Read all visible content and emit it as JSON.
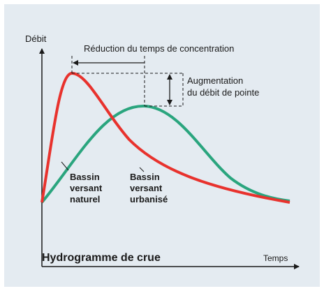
{
  "axes": {
    "y_label": "Débit",
    "x_label": "Temps"
  },
  "title": "Hydrogramme de crue",
  "annotations": {
    "reduction": "Réduction du temps de concentration",
    "augmentation": [
      "Augmentation",
      "du débit de pointe"
    ]
  },
  "curves": [
    {
      "name": [
        "Bassin",
        "versant",
        "naturel"
      ],
      "color": "#2aa57e"
    },
    {
      "name": [
        "Bassin",
        "versant",
        "urbanisé"
      ],
      "color": "#e8322d"
    }
  ]
}
